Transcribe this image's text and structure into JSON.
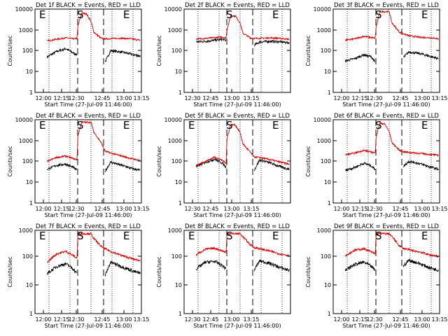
{
  "colors": {
    "events": "#000000",
    "lld": "#e00000"
  },
  "chart_data": [
    {
      "type": "line",
      "title": "Det 1f BLACK = Events, RED = LLD",
      "xlabel": "Start Time (27-Jul-09 11:46:00)",
      "ylabel": "Counts/sec",
      "log_y": true,
      "ylim": [
        1,
        12000
      ],
      "xlim_minutes": [
        -13,
        101
      ],
      "x_ticks": [
        "12:00",
        "12:15",
        "12:30",
        "12:45",
        "13:00",
        "13:15"
      ],
      "y_ticks": [
        "1",
        "10",
        "100",
        "1000",
        "10000"
      ],
      "markers": [
        "E",
        "S",
        "E"
      ],
      "grid": "vertical dotted",
      "series": [
        {
          "name": "Events",
          "color": "black",
          "x": [
            0,
            10,
            20,
            28,
            32,
            33,
            37,
            42,
            47,
            50,
            58,
            62,
            68,
            80,
            90,
            100
          ],
          "y": [
            55,
            100,
            140,
            85,
            70,
            null,
            null,
            null,
            null,
            null,
            null,
            30,
            110,
            95,
            75,
            60
          ]
        },
        {
          "name": "LLD",
          "color": "red",
          "x": [
            0,
            10,
            20,
            28,
            32,
            33,
            37,
            42,
            47,
            50,
            58,
            62,
            68,
            80,
            90,
            100
          ],
          "y": [
            330,
            400,
            470,
            420,
            430,
            1800,
            7500,
            7200,
            3000,
            900,
            440,
            420,
            430,
            450,
            420,
            360
          ]
        }
      ]
    },
    {
      "type": "line",
      "title": "Det 2f BLACK = Events, RED = LLD",
      "xlabel": "Start Time (27-Jul-09 11:46:00)",
      "ylabel": "Counts/sec",
      "log_y": true,
      "ylim": [
        1,
        12000
      ],
      "xlim_minutes": [
        -13,
        101
      ],
      "x_ticks": [
        "12:30",
        "12:45",
        "13:00",
        "13:15"
      ],
      "y_ticks": [
        "1",
        "10",
        "100",
        "1000",
        "10000"
      ],
      "markers": [
        "S",
        "E"
      ],
      "grid": "vertical dotted",
      "series": [
        {
          "name": "Events",
          "color": "black",
          "x": [
            0,
            10,
            20,
            28,
            32,
            33,
            37,
            42,
            47,
            50,
            58,
            62,
            68,
            80,
            90,
            100
          ],
          "y": [
            300,
            320,
            360,
            400,
            350,
            null,
            null,
            null,
            null,
            null,
            null,
            200,
            300,
            320,
            300,
            270
          ]
        },
        {
          "name": "LLD",
          "color": "red",
          "x": [
            0,
            10,
            20,
            28,
            32,
            33,
            37,
            42,
            47,
            50,
            58,
            62,
            68,
            80,
            90,
            100
          ],
          "y": [
            420,
            440,
            480,
            520,
            460,
            1200,
            5800,
            5500,
            2500,
            800,
            470,
            440,
            450,
            470,
            440,
            400
          ]
        }
      ]
    },
    {
      "type": "line",
      "title": "Det 3f BLACK = Events, RED = LLD",
      "xlabel": "Start Time (27-Jul-09 11:46:00)",
      "ylabel": "Counts/sec",
      "log_y": true,
      "ylim": [
        1,
        12000
      ],
      "xlim_minutes": [
        -13,
        101
      ],
      "x_ticks": [
        "12:00",
        "12:15",
        "12:30",
        "12:45",
        "13:00",
        "13:15"
      ],
      "y_ticks": [
        "1",
        "10",
        "100",
        "1000",
        "10000"
      ],
      "markers": [
        "S",
        "E"
      ],
      "grid": "vertical dotted",
      "series": [
        {
          "name": "Events",
          "color": "black",
          "x": [
            0,
            10,
            20,
            28,
            32,
            33,
            37,
            42,
            47,
            50,
            58,
            62,
            68,
            80,
            90,
            100
          ],
          "y": [
            35,
            45,
            70,
            55,
            30,
            null,
            null,
            null,
            null,
            null,
            null,
            50,
            95,
            80,
            60,
            45
          ]
        },
        {
          "name": "LLD",
          "color": "red",
          "x": [
            0,
            10,
            20,
            28,
            32,
            33,
            37,
            42,
            47,
            50,
            58,
            62,
            68,
            80,
            90,
            100
          ],
          "y": [
            360,
            420,
            560,
            480,
            450,
            1600,
            9000,
            9000,
            9000,
            2500,
            900,
            750,
            600,
            500,
            480,
            420
          ]
        }
      ]
    },
    {
      "type": "line",
      "title": "Det 4f BLACK = Events, RED = LLD",
      "xlabel": "Start Time (27-Jul-09 11:46:00)",
      "ylabel": "Counts/sec",
      "log_y": true,
      "ylim": [
        1,
        12000
      ],
      "xlim_minutes": [
        -13,
        101
      ],
      "x_ticks": [
        "12:00",
        "12:15",
        "12:30",
        "12:45",
        "13:00",
        "13:15"
      ],
      "y_ticks": [
        "1",
        "10",
        "100",
        "1000",
        "10000"
      ],
      "markers": [
        "E",
        "S",
        "E"
      ],
      "grid": "vertical dotted",
      "series": [
        {
          "name": "Events",
          "color": "black",
          "x": [
            0,
            10,
            20,
            28,
            32,
            33,
            37,
            42,
            47,
            50,
            58,
            62,
            68,
            80,
            90,
            100
          ],
          "y": [
            45,
            70,
            80,
            55,
            40,
            null,
            null,
            null,
            null,
            null,
            null,
            35,
            100,
            70,
            50,
            40
          ]
        },
        {
          "name": "LLD",
          "color": "red",
          "x": [
            0,
            10,
            20,
            28,
            32,
            33,
            37,
            42,
            47,
            50,
            58,
            62,
            68,
            80,
            90,
            100
          ],
          "y": [
            110,
            170,
            200,
            150,
            130,
            2000,
            9000,
            9000,
            9000,
            3000,
            900,
            350,
            280,
            200,
            150,
            120
          ]
        }
      ]
    },
    {
      "type": "line",
      "title": "Det 5f BLACK = Events, RED = LLD",
      "xlabel": "Start Time (27-Jul-09 11:46:00)",
      "ylabel": "Counts/sec",
      "log_y": true,
      "ylim": [
        1,
        12000
      ],
      "xlim_minutes": [
        -13,
        101
      ],
      "x_ticks": [
        "12:30",
        "12:45",
        "13:00",
        "13:15"
      ],
      "y_ticks": [
        "1",
        "10",
        "100",
        "1000",
        "10000"
      ],
      "markers": [
        "E",
        "S",
        "E"
      ],
      "grid": "vertical dotted",
      "series": [
        {
          "name": "Events",
          "color": "black",
          "x": [
            0,
            10,
            20,
            28,
            32,
            33,
            37,
            42,
            47,
            50,
            58,
            62,
            68,
            80,
            90,
            100
          ],
          "y": [
            60,
            100,
            140,
            90,
            55,
            null,
            null,
            null,
            null,
            null,
            null,
            40,
            130,
            90,
            60,
            45
          ]
        },
        {
          "name": "LLD",
          "color": "red",
          "x": [
            0,
            10,
            20,
            28,
            32,
            33,
            37,
            42,
            47,
            50,
            58,
            62,
            68,
            80,
            90,
            100
          ],
          "y": [
            70,
            110,
            180,
            120,
            90,
            1500,
            7000,
            6500,
            2800,
            800,
            300,
            180,
            170,
            130,
            100,
            80
          ]
        }
      ]
    },
    {
      "type": "line",
      "title": "Det 6f BLACK = Events, RED = LLD",
      "xlabel": "Start Time (27-Jul-09 11:46:00)",
      "ylabel": "Counts/sec",
      "log_y": true,
      "ylim": [
        1,
        12000
      ],
      "xlim_minutes": [
        -13,
        101
      ],
      "x_ticks": [
        "12:00",
        "12:15",
        "12:30",
        "12:45",
        "13:00",
        "13:15"
      ],
      "y_ticks": [
        "1",
        "10",
        "100",
        "1000",
        "10000"
      ],
      "markers": [
        "S",
        "E"
      ],
      "grid": "vertical dotted",
      "series": [
        {
          "name": "Events",
          "color": "black",
          "x": [
            0,
            10,
            20,
            28,
            32,
            33,
            37,
            42,
            47,
            50,
            58,
            62,
            68,
            80,
            90,
            100
          ],
          "y": [
            40,
            55,
            90,
            65,
            45,
            null,
            null,
            null,
            null,
            null,
            null,
            60,
            110,
            85,
            60,
            45
          ]
        },
        {
          "name": "LLD",
          "color": "red",
          "x": [
            0,
            10,
            20,
            28,
            32,
            33,
            37,
            42,
            47,
            50,
            58,
            62,
            68,
            80,
            90,
            100
          ],
          "y": [
            230,
            280,
            380,
            310,
            280,
            1800,
            8000,
            7500,
            3200,
            900,
            380,
            320,
            300,
            270,
            240,
            220
          ]
        }
      ]
    },
    {
      "type": "line",
      "title": "Det 7f BLACK = Events, RED = LLD",
      "xlabel": "Start Time (27-Jul-09 11:46:00)",
      "ylabel": "Counts/sec",
      "log_y": true,
      "ylim": [
        1,
        1200
      ],
      "xlim_minutes": [
        -13,
        101
      ],
      "x_ticks": [
        "12:00",
        "12:15",
        "12:30",
        "12:45",
        "13:00",
        "13:15"
      ],
      "y_ticks": [
        "1",
        "10",
        "100",
        "1000"
      ],
      "markers": [
        "E",
        "S",
        "E"
      ],
      "grid": "vertical dotted",
      "series": [
        {
          "name": "Events",
          "color": "black",
          "x": [
            0,
            10,
            20,
            28,
            32,
            33,
            37,
            42,
            47,
            50,
            58,
            62,
            68,
            80,
            90,
            100
          ],
          "y": [
            30,
            55,
            70,
            45,
            30,
            null,
            null,
            null,
            null,
            null,
            null,
            25,
            80,
            55,
            40,
            30
          ]
        },
        {
          "name": "LLD",
          "color": "red",
          "x": [
            0,
            10,
            20,
            28,
            32,
            33,
            37,
            42,
            47,
            50,
            58,
            62,
            68,
            80,
            90,
            100
          ],
          "y": [
            80,
            160,
            200,
            140,
            110,
            900,
            900,
            900,
            900,
            600,
            300,
            250,
            200,
            140,
            110,
            90
          ]
        }
      ]
    },
    {
      "type": "line",
      "title": "Det 8f BLACK = Events, RED = LLD",
      "xlabel": "Start Time (27-Jul-09 11:46:00)",
      "ylabel": "Counts/sec",
      "log_y": true,
      "ylim": [
        1,
        1200
      ],
      "xlim_minutes": [
        -13,
        101
      ],
      "x_ticks": [
        "12:30",
        "12:45",
        "13:00",
        "13:15"
      ],
      "y_ticks": [
        "1",
        "10",
        "100",
        "1000"
      ],
      "markers": [
        "E",
        "S",
        "E"
      ],
      "grid": "vertical dotted",
      "series": [
        {
          "name": "Events",
          "color": "black",
          "x": [
            0,
            10,
            20,
            28,
            32,
            33,
            37,
            42,
            47,
            50,
            58,
            62,
            68,
            80,
            90,
            100
          ],
          "y": [
            45,
            80,
            85,
            60,
            45,
            null,
            null,
            null,
            null,
            null,
            null,
            40,
            90,
            70,
            50,
            40
          ]
        },
        {
          "name": "LLD",
          "color": "red",
          "x": [
            0,
            10,
            20,
            28,
            32,
            33,
            37,
            42,
            47,
            50,
            58,
            62,
            68,
            80,
            90,
            100
          ],
          "y": [
            150,
            240,
            260,
            210,
            180,
            900,
            900,
            900,
            900,
            700,
            350,
            280,
            250,
            200,
            160,
            140
          ]
        }
      ]
    },
    {
      "type": "line",
      "title": "Det 9f BLACK = Events, RED = LLD",
      "xlabel": "Start Time (27-Jul-09 11:46:00)",
      "ylabel": "Counts/sec",
      "log_y": true,
      "ylim": [
        1,
        1200
      ],
      "xlim_minutes": [
        -13,
        101
      ],
      "x_ticks": [
        "12:00",
        "12:15",
        "12:30",
        "12:45",
        "13:00",
        "13:15"
      ],
      "y_ticks": [
        "1",
        "10",
        "100",
        "1000"
      ],
      "markers": [
        "S",
        "E"
      ],
      "grid": "vertical dotted",
      "series": [
        {
          "name": "Events",
          "color": "black",
          "x": [
            0,
            10,
            20,
            28,
            32,
            33,
            37,
            42,
            47,
            50,
            58,
            62,
            68,
            80,
            90,
            100
          ],
          "y": [
            40,
            65,
            80,
            55,
            40,
            null,
            null,
            null,
            null,
            null,
            null,
            55,
            95,
            70,
            50,
            40
          ]
        },
        {
          "name": "LLD",
          "color": "red",
          "x": [
            0,
            10,
            20,
            28,
            32,
            33,
            37,
            42,
            47,
            50,
            58,
            62,
            68,
            80,
            90,
            100
          ],
          "y": [
            140,
            220,
            250,
            190,
            160,
            900,
            900,
            900,
            900,
            700,
            320,
            260,
            230,
            190,
            150,
            130
          ]
        }
      ]
    }
  ]
}
